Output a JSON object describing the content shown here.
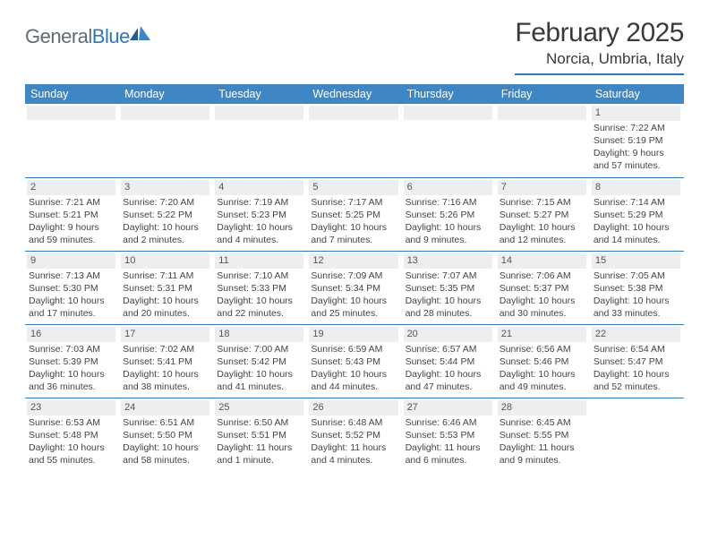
{
  "logo": {
    "word1": "General",
    "word2": "Blue"
  },
  "header": {
    "month": "February 2025",
    "location": "Norcia, Umbria, Italy"
  },
  "colors": {
    "brand": "#2f77b7",
    "header_bg": "#3e86c4",
    "header_fg": "#ffffff",
    "daynum_bg": "#eceef0",
    "text": "#3a3a3a"
  },
  "weekdays": [
    "Sunday",
    "Monday",
    "Tuesday",
    "Wednesday",
    "Thursday",
    "Friday",
    "Saturday"
  ],
  "weeks": [
    [
      {
        "num": "",
        "l1": "",
        "l2": "",
        "l3": "",
        "l4": ""
      },
      {
        "num": "",
        "l1": "",
        "l2": "",
        "l3": "",
        "l4": ""
      },
      {
        "num": "",
        "l1": "",
        "l2": "",
        "l3": "",
        "l4": ""
      },
      {
        "num": "",
        "l1": "",
        "l2": "",
        "l3": "",
        "l4": ""
      },
      {
        "num": "",
        "l1": "",
        "l2": "",
        "l3": "",
        "l4": ""
      },
      {
        "num": "",
        "l1": "",
        "l2": "",
        "l3": "",
        "l4": ""
      },
      {
        "num": "1",
        "l1": "Sunrise: 7:22 AM",
        "l2": "Sunset: 5:19 PM",
        "l3": "Daylight: 9 hours",
        "l4": "and 57 minutes."
      }
    ],
    [
      {
        "num": "2",
        "l1": "Sunrise: 7:21 AM",
        "l2": "Sunset: 5:21 PM",
        "l3": "Daylight: 9 hours",
        "l4": "and 59 minutes."
      },
      {
        "num": "3",
        "l1": "Sunrise: 7:20 AM",
        "l2": "Sunset: 5:22 PM",
        "l3": "Daylight: 10 hours",
        "l4": "and 2 minutes."
      },
      {
        "num": "4",
        "l1": "Sunrise: 7:19 AM",
        "l2": "Sunset: 5:23 PM",
        "l3": "Daylight: 10 hours",
        "l4": "and 4 minutes."
      },
      {
        "num": "5",
        "l1": "Sunrise: 7:17 AM",
        "l2": "Sunset: 5:25 PM",
        "l3": "Daylight: 10 hours",
        "l4": "and 7 minutes."
      },
      {
        "num": "6",
        "l1": "Sunrise: 7:16 AM",
        "l2": "Sunset: 5:26 PM",
        "l3": "Daylight: 10 hours",
        "l4": "and 9 minutes."
      },
      {
        "num": "7",
        "l1": "Sunrise: 7:15 AM",
        "l2": "Sunset: 5:27 PM",
        "l3": "Daylight: 10 hours",
        "l4": "and 12 minutes."
      },
      {
        "num": "8",
        "l1": "Sunrise: 7:14 AM",
        "l2": "Sunset: 5:29 PM",
        "l3": "Daylight: 10 hours",
        "l4": "and 14 minutes."
      }
    ],
    [
      {
        "num": "9",
        "l1": "Sunrise: 7:13 AM",
        "l2": "Sunset: 5:30 PM",
        "l3": "Daylight: 10 hours",
        "l4": "and 17 minutes."
      },
      {
        "num": "10",
        "l1": "Sunrise: 7:11 AM",
        "l2": "Sunset: 5:31 PM",
        "l3": "Daylight: 10 hours",
        "l4": "and 20 minutes."
      },
      {
        "num": "11",
        "l1": "Sunrise: 7:10 AM",
        "l2": "Sunset: 5:33 PM",
        "l3": "Daylight: 10 hours",
        "l4": "and 22 minutes."
      },
      {
        "num": "12",
        "l1": "Sunrise: 7:09 AM",
        "l2": "Sunset: 5:34 PM",
        "l3": "Daylight: 10 hours",
        "l4": "and 25 minutes."
      },
      {
        "num": "13",
        "l1": "Sunrise: 7:07 AM",
        "l2": "Sunset: 5:35 PM",
        "l3": "Daylight: 10 hours",
        "l4": "and 28 minutes."
      },
      {
        "num": "14",
        "l1": "Sunrise: 7:06 AM",
        "l2": "Sunset: 5:37 PM",
        "l3": "Daylight: 10 hours",
        "l4": "and 30 minutes."
      },
      {
        "num": "15",
        "l1": "Sunrise: 7:05 AM",
        "l2": "Sunset: 5:38 PM",
        "l3": "Daylight: 10 hours",
        "l4": "and 33 minutes."
      }
    ],
    [
      {
        "num": "16",
        "l1": "Sunrise: 7:03 AM",
        "l2": "Sunset: 5:39 PM",
        "l3": "Daylight: 10 hours",
        "l4": "and 36 minutes."
      },
      {
        "num": "17",
        "l1": "Sunrise: 7:02 AM",
        "l2": "Sunset: 5:41 PM",
        "l3": "Daylight: 10 hours",
        "l4": "and 38 minutes."
      },
      {
        "num": "18",
        "l1": "Sunrise: 7:00 AM",
        "l2": "Sunset: 5:42 PM",
        "l3": "Daylight: 10 hours",
        "l4": "and 41 minutes."
      },
      {
        "num": "19",
        "l1": "Sunrise: 6:59 AM",
        "l2": "Sunset: 5:43 PM",
        "l3": "Daylight: 10 hours",
        "l4": "and 44 minutes."
      },
      {
        "num": "20",
        "l1": "Sunrise: 6:57 AM",
        "l2": "Sunset: 5:44 PM",
        "l3": "Daylight: 10 hours",
        "l4": "and 47 minutes."
      },
      {
        "num": "21",
        "l1": "Sunrise: 6:56 AM",
        "l2": "Sunset: 5:46 PM",
        "l3": "Daylight: 10 hours",
        "l4": "and 49 minutes."
      },
      {
        "num": "22",
        "l1": "Sunrise: 6:54 AM",
        "l2": "Sunset: 5:47 PM",
        "l3": "Daylight: 10 hours",
        "l4": "and 52 minutes."
      }
    ],
    [
      {
        "num": "23",
        "l1": "Sunrise: 6:53 AM",
        "l2": "Sunset: 5:48 PM",
        "l3": "Daylight: 10 hours",
        "l4": "and 55 minutes."
      },
      {
        "num": "24",
        "l1": "Sunrise: 6:51 AM",
        "l2": "Sunset: 5:50 PM",
        "l3": "Daylight: 10 hours",
        "l4": "and 58 minutes."
      },
      {
        "num": "25",
        "l1": "Sunrise: 6:50 AM",
        "l2": "Sunset: 5:51 PM",
        "l3": "Daylight: 11 hours",
        "l4": "and 1 minute."
      },
      {
        "num": "26",
        "l1": "Sunrise: 6:48 AM",
        "l2": "Sunset: 5:52 PM",
        "l3": "Daylight: 11 hours",
        "l4": "and 4 minutes."
      },
      {
        "num": "27",
        "l1": "Sunrise: 6:46 AM",
        "l2": "Sunset: 5:53 PM",
        "l3": "Daylight: 11 hours",
        "l4": "and 6 minutes."
      },
      {
        "num": "28",
        "l1": "Sunrise: 6:45 AM",
        "l2": "Sunset: 5:55 PM",
        "l3": "Daylight: 11 hours",
        "l4": "and 9 minutes."
      },
      {
        "num": "",
        "l1": "",
        "l2": "",
        "l3": "",
        "l4": ""
      }
    ]
  ]
}
